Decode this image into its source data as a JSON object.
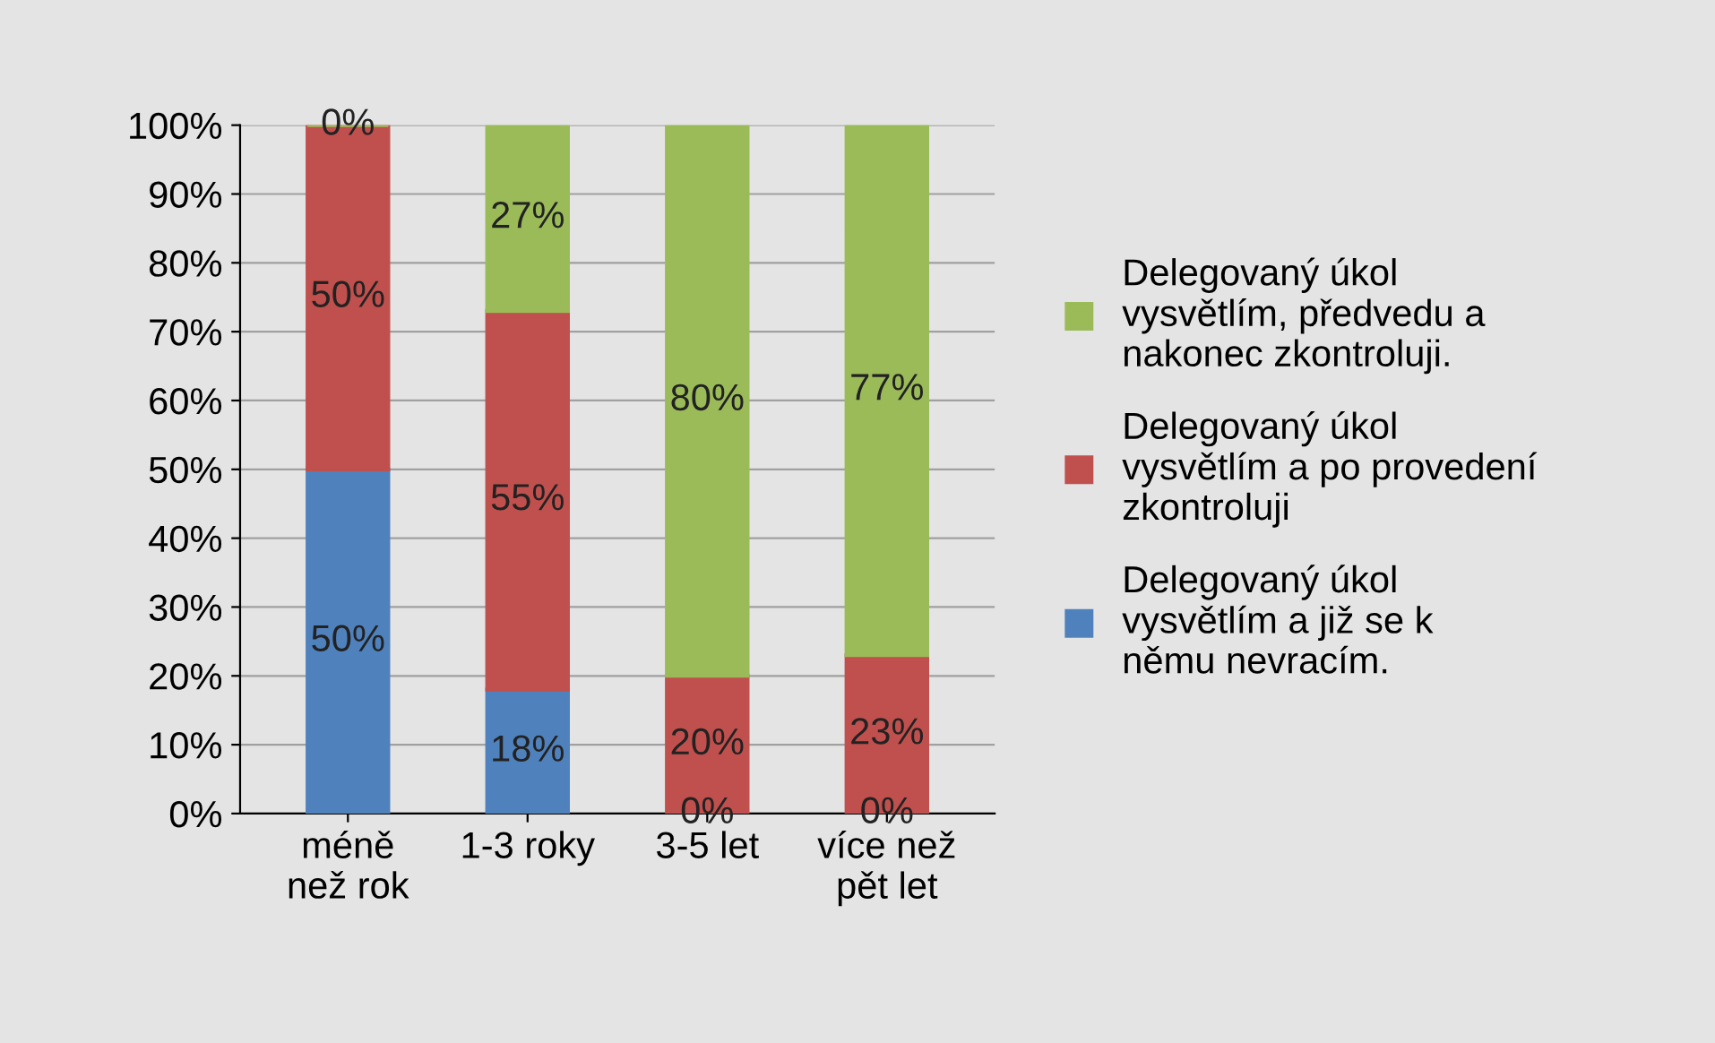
{
  "chart_data": {
    "type": "bar",
    "stacked": true,
    "categories": [
      "méně\nnež rok",
      "1-3 roky",
      "3-5 let",
      "více než\npět let"
    ],
    "series": [
      {
        "name": "Delegovaný úkol vysvětlím a již se k němu nevracím.",
        "color": "#4f81bd",
        "values": [
          50,
          18,
          0,
          0
        ],
        "value_labels": [
          "50%",
          "18%",
          "0%",
          "0%"
        ]
      },
      {
        "name": "Delegovaný úkol vysvětlím a po provedení zkontroluji",
        "color": "#c0504d",
        "values": [
          50,
          55,
          20,
          23
        ],
        "value_labels": [
          "50%",
          "55%",
          "20%",
          "23%"
        ]
      },
      {
        "name": "Delegovaný úkol vysvětlím, předvedu a nakonec zkontroluji.",
        "color": "#9bbb59",
        "values": [
          0,
          27,
          80,
          77
        ],
        "value_labels": [
          "0%",
          "27%",
          "80%",
          "77%"
        ]
      }
    ],
    "ylim": [
      0,
      100
    ],
    "yticks": [
      {
        "value": 0,
        "label": "0%"
      },
      {
        "value": 10,
        "label": "10%"
      },
      {
        "value": 20,
        "label": "20%"
      },
      {
        "value": 30,
        "label": "30%"
      },
      {
        "value": 40,
        "label": "40%"
      },
      {
        "value": 50,
        "label": "50%"
      },
      {
        "value": 60,
        "label": "60%"
      },
      {
        "value": 70,
        "label": "70%"
      },
      {
        "value": 80,
        "label": "80%"
      },
      {
        "value": 90,
        "label": "90%"
      },
      {
        "value": 100,
        "label": "100%"
      }
    ],
    "grid": "y",
    "legend": "right"
  }
}
